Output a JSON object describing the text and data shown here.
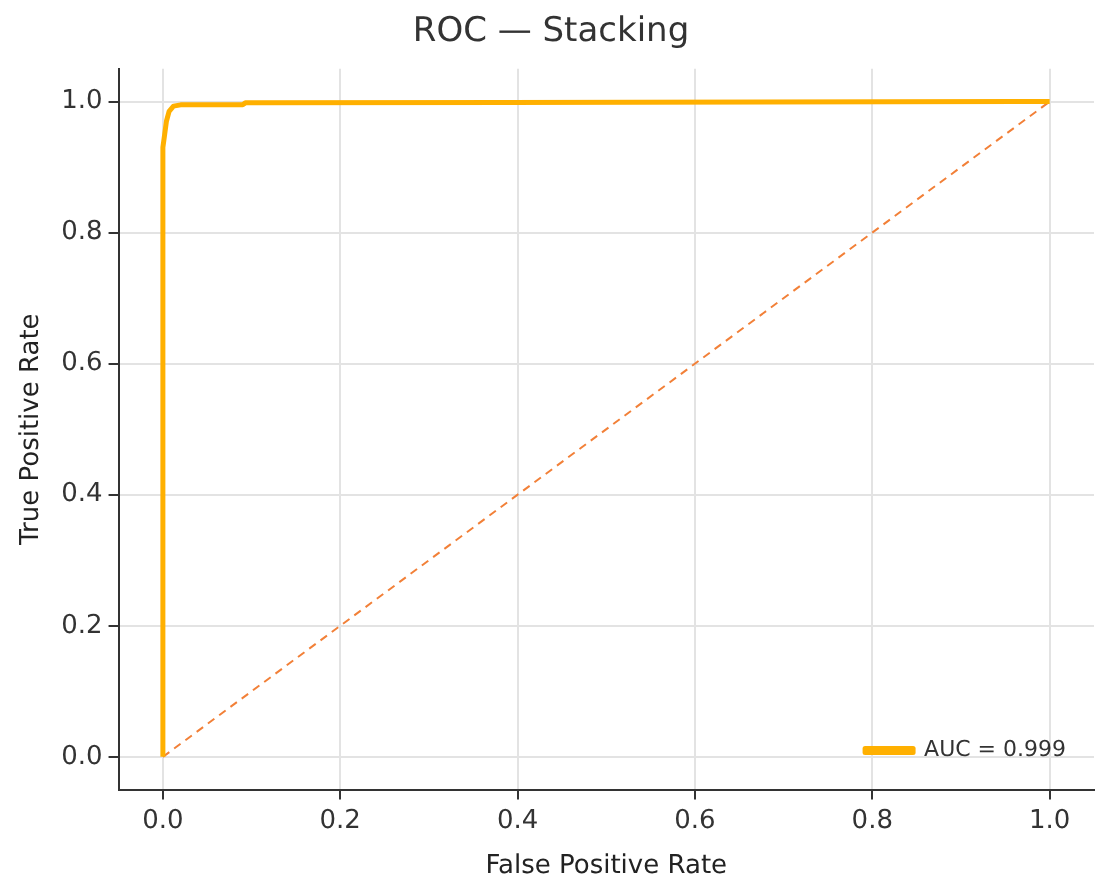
{
  "chart_data": {
    "type": "line",
    "title": "ROC — Stacking",
    "xlabel": "False Positive Rate",
    "ylabel": "True Positive Rate",
    "series": [
      {
        "name": "AUC = 0.999",
        "color": "#ffb000",
        "x": [
          0,
          0,
          0.002,
          0.004,
          0.007,
          0.012,
          0.02,
          0.09,
          0.093,
          1
        ],
        "values": [
          0,
          0.93,
          0.95,
          0.97,
          0.985,
          0.993,
          0.995,
          0.995,
          0.998,
          1
        ],
        "line_style": "solid"
      },
      {
        "color": "#f28038",
        "x": [
          0,
          1
        ],
        "values": [
          0,
          1
        ],
        "line_style": "dashed"
      }
    ],
    "xlim": [
      -0.05,
      1.05
    ],
    "ylim": [
      -0.05,
      1.05
    ],
    "xticks": [
      {
        "value": 0,
        "label": "0.0"
      },
      {
        "value": 0.2,
        "label": "0.2"
      },
      {
        "value": 0.4,
        "label": "0.4"
      },
      {
        "value": 0.6,
        "label": "0.6"
      },
      {
        "value": 0.8,
        "label": "0.8"
      },
      {
        "value": 1,
        "label": "1.0"
      }
    ],
    "yticks": [
      {
        "value": 0,
        "label": "0.0"
      },
      {
        "value": 0.2,
        "label": "0.2"
      },
      {
        "value": 0.4,
        "label": "0.4"
      },
      {
        "value": 0.6,
        "label": "0.6"
      },
      {
        "value": 0.8,
        "label": "0.8"
      },
      {
        "value": 1,
        "label": "1.0"
      }
    ],
    "grid": true,
    "legend": "bottom right",
    "marker": "none"
  }
}
